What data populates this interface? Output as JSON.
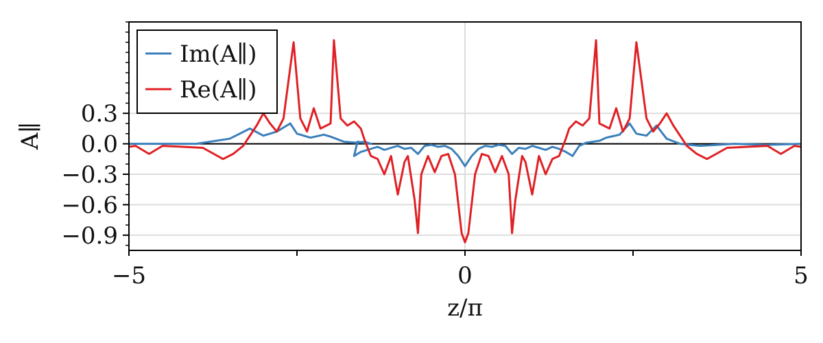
{
  "chart_data": {
    "type": "line",
    "title": "",
    "xlabel": "z/π",
    "ylabel": "A∥",
    "xlim": [
      -5,
      5
    ],
    "ylim": [
      -1.05,
      1.2
    ],
    "xticks": [
      -5,
      -2.5,
      0,
      2.5,
      5
    ],
    "xtick_labels": [
      "−5",
      "",
      "0",
      "",
      "5"
    ],
    "yticks": [
      -0.9,
      -0.6,
      -0.3,
      0.0,
      0.3
    ],
    "ytick_labels": [
      "−0.9",
      "−0.6",
      "−0.3",
      "0.0",
      "0.3"
    ],
    "grid": true,
    "legend_position": "top-left",
    "series": [
      {
        "name": "Im(A∥)",
        "color": "#3a7fba",
        "points": [
          [
            -5.0,
            0.0
          ],
          [
            -4.5,
            0.0
          ],
          [
            -4.0,
            0.0
          ],
          [
            -3.5,
            0.05
          ],
          [
            -3.2,
            0.15
          ],
          [
            -3.0,
            0.08
          ],
          [
            -2.8,
            0.12
          ],
          [
            -2.6,
            0.2
          ],
          [
            -2.5,
            0.1
          ],
          [
            -2.3,
            0.06
          ],
          [
            -2.1,
            0.09
          ],
          [
            -2.0,
            0.07
          ],
          [
            -1.8,
            0.02
          ],
          [
            -1.6,
            0.01
          ],
          [
            -1.5,
            0.02
          ],
          [
            -1.4,
            0.0
          ],
          [
            -1.6,
            0.02
          ],
          [
            -1.65,
            -0.12
          ],
          [
            -1.55,
            -0.08
          ],
          [
            -1.4,
            -0.05
          ],
          [
            -1.3,
            -0.03
          ],
          [
            -1.2,
            -0.06
          ],
          [
            -1.1,
            -0.04
          ],
          [
            -1.0,
            -0.02
          ],
          [
            -0.9,
            -0.05
          ],
          [
            -0.8,
            -0.04
          ],
          [
            -0.7,
            -0.1
          ],
          [
            -0.6,
            -0.02
          ],
          [
            -0.5,
            -0.01
          ],
          [
            -0.4,
            -0.03
          ],
          [
            -0.3,
            -0.02
          ],
          [
            -0.2,
            -0.05
          ],
          [
            -0.1,
            -0.12
          ],
          [
            0.0,
            -0.22
          ],
          [
            0.1,
            -0.12
          ],
          [
            0.2,
            -0.05
          ],
          [
            0.3,
            -0.02
          ],
          [
            0.4,
            -0.03
          ],
          [
            0.5,
            -0.01
          ],
          [
            0.6,
            -0.02
          ],
          [
            0.7,
            -0.1
          ],
          [
            0.8,
            -0.04
          ],
          [
            0.9,
            -0.05
          ],
          [
            1.0,
            -0.02
          ],
          [
            1.1,
            -0.04
          ],
          [
            1.2,
            -0.06
          ],
          [
            1.3,
            -0.03
          ],
          [
            1.4,
            -0.05
          ],
          [
            1.5,
            -0.08
          ],
          [
            1.6,
            -0.12
          ],
          [
            1.7,
            -0.02
          ],
          [
            1.8,
            0.01
          ],
          [
            1.9,
            0.02
          ],
          [
            2.0,
            0.03
          ],
          [
            2.1,
            0.06
          ],
          [
            2.3,
            0.09
          ],
          [
            2.45,
            0.2
          ],
          [
            2.55,
            0.1
          ],
          [
            2.7,
            0.08
          ],
          [
            2.85,
            0.18
          ],
          [
            3.0,
            0.05
          ],
          [
            3.2,
            0.0
          ],
          [
            3.5,
            -0.02
          ],
          [
            4.0,
            0.0
          ],
          [
            4.5,
            -0.01
          ],
          [
            5.0,
            0.0
          ]
        ]
      },
      {
        "name": "Re(A∥)",
        "color": "#e02024",
        "points": [
          [
            -5.0,
            -0.03
          ],
          [
            -4.9,
            -0.02
          ],
          [
            -4.7,
            -0.1
          ],
          [
            -4.5,
            -0.02
          ],
          [
            -4.2,
            -0.03
          ],
          [
            -3.9,
            -0.04
          ],
          [
            -3.6,
            -0.15
          ],
          [
            -3.45,
            -0.1
          ],
          [
            -3.3,
            -0.02
          ],
          [
            -3.1,
            0.18
          ],
          [
            -3.0,
            0.3
          ],
          [
            -2.9,
            0.2
          ],
          [
            -2.8,
            0.12
          ],
          [
            -2.7,
            0.25
          ],
          [
            -2.55,
            1.0
          ],
          [
            -2.45,
            0.25
          ],
          [
            -2.35,
            0.12
          ],
          [
            -2.25,
            0.35
          ],
          [
            -2.15,
            0.15
          ],
          [
            -2.0,
            0.2
          ],
          [
            -1.95,
            1.02
          ],
          [
            -1.85,
            0.25
          ],
          [
            -1.75,
            0.18
          ],
          [
            -1.65,
            0.22
          ],
          [
            -1.55,
            0.15
          ],
          [
            -1.5,
            0.05
          ],
          [
            -1.4,
            -0.12
          ],
          [
            -1.3,
            -0.15
          ],
          [
            -1.2,
            -0.3
          ],
          [
            -1.1,
            -0.12
          ],
          [
            -1.0,
            -0.5
          ],
          [
            -0.9,
            -0.18
          ],
          [
            -0.85,
            -0.12
          ],
          [
            -0.75,
            -0.55
          ],
          [
            -0.7,
            -0.88
          ],
          [
            -0.65,
            -0.3
          ],
          [
            -0.55,
            -0.12
          ],
          [
            -0.45,
            -0.28
          ],
          [
            -0.35,
            -0.12
          ],
          [
            -0.25,
            -0.1
          ],
          [
            -0.15,
            -0.3
          ],
          [
            -0.05,
            -0.88
          ],
          [
            0.0,
            -0.97
          ],
          [
            0.05,
            -0.88
          ],
          [
            0.15,
            -0.3
          ],
          [
            0.25,
            -0.1
          ],
          [
            0.35,
            -0.12
          ],
          [
            0.45,
            -0.28
          ],
          [
            0.55,
            -0.12
          ],
          [
            0.65,
            -0.3
          ],
          [
            0.7,
            -0.88
          ],
          [
            0.75,
            -0.55
          ],
          [
            0.85,
            -0.12
          ],
          [
            0.9,
            -0.18
          ],
          [
            1.0,
            -0.5
          ],
          [
            1.1,
            -0.12
          ],
          [
            1.2,
            -0.3
          ],
          [
            1.3,
            -0.15
          ],
          [
            1.4,
            -0.12
          ],
          [
            1.5,
            0.05
          ],
          [
            1.55,
            0.15
          ],
          [
            1.65,
            0.22
          ],
          [
            1.75,
            0.18
          ],
          [
            1.85,
            0.25
          ],
          [
            1.95,
            1.02
          ],
          [
            2.0,
            0.2
          ],
          [
            2.15,
            0.15
          ],
          [
            2.25,
            0.35
          ],
          [
            2.35,
            0.12
          ],
          [
            2.45,
            0.25
          ],
          [
            2.55,
            1.0
          ],
          [
            2.7,
            0.25
          ],
          [
            2.8,
            0.12
          ],
          [
            2.9,
            0.2
          ],
          [
            3.0,
            0.3
          ],
          [
            3.1,
            0.18
          ],
          [
            3.3,
            -0.02
          ],
          [
            3.45,
            -0.1
          ],
          [
            3.6,
            -0.15
          ],
          [
            3.9,
            -0.04
          ],
          [
            4.2,
            -0.03
          ],
          [
            4.5,
            -0.02
          ],
          [
            4.7,
            -0.1
          ],
          [
            4.9,
            -0.02
          ],
          [
            5.0,
            -0.03
          ]
        ]
      }
    ]
  }
}
